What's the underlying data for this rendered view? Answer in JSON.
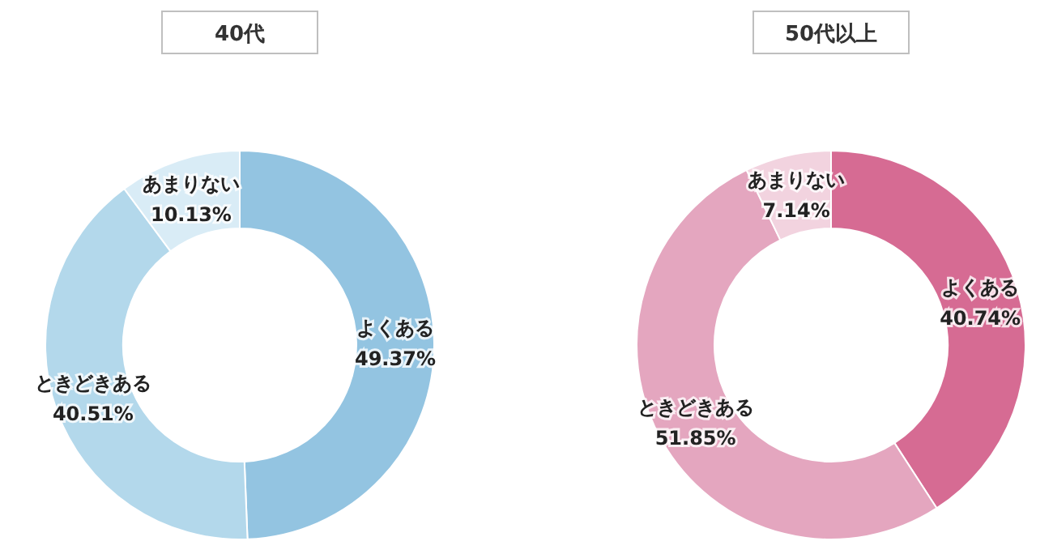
{
  "chart_data": [
    {
      "type": "donut",
      "title": "40代",
      "categories": [
        "よくある",
        "ときどきある",
        "あまりない"
      ],
      "values": [
        49.37,
        40.51,
        10.13
      ],
      "value_labels": [
        "49.37%",
        "40.51%",
        "10.13%"
      ],
      "colors": [
        "#93c4e1",
        "#b3d8eb",
        "#d9ecf6"
      ]
    },
    {
      "type": "donut",
      "title": "50代以上",
      "categories": [
        "よくある",
        "ときどきある",
        "あまりない"
      ],
      "values": [
        40.74,
        51.85,
        7.14
      ],
      "value_labels": [
        "40.74%",
        "51.85%",
        "7.14%"
      ],
      "colors": [
        "#d66b93",
        "#e4a6bf",
        "#f2d3df"
      ]
    }
  ]
}
